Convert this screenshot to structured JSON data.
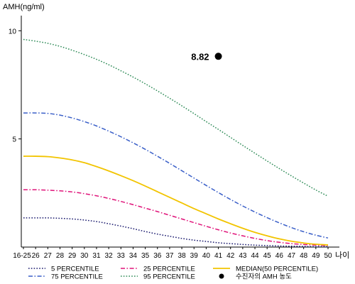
{
  "chart_data": {
    "type": "line",
    "ylabel": "AMH(ng/ml)",
    "xlabel": "나이",
    "y_ticks": [
      "5",
      "10"
    ],
    "ylim": [
      0,
      10.7
    ],
    "x_ticks": [
      "16-25",
      "26",
      "27",
      "28",
      "29",
      "30",
      "31",
      "32",
      "33",
      "34",
      "35",
      "36",
      "37",
      "38",
      "39",
      "40",
      "41",
      "42",
      "43",
      "44",
      "45",
      "46",
      "47",
      "48",
      "49",
      "50"
    ],
    "series": [
      {
        "name": "5 PERCENTILE",
        "color": "#1a1a6e",
        "dash": "dotted",
        "values": [
          1.35,
          1.35,
          1.35,
          1.33,
          1.3,
          1.25,
          1.18,
          1.08,
          0.97,
          0.85,
          0.72,
          0.6,
          0.5,
          0.4,
          0.32,
          0.26,
          0.2,
          0.16,
          0.12,
          0.09,
          0.07,
          0.05,
          0.04,
          0.03,
          0.02,
          0.02
        ]
      },
      {
        "name": "25 PERCENTILE",
        "color": "#e0147a",
        "dash": "dashdot",
        "values": [
          2.65,
          2.65,
          2.63,
          2.6,
          2.55,
          2.47,
          2.37,
          2.25,
          2.11,
          1.96,
          1.8,
          1.64,
          1.47,
          1.3,
          1.13,
          0.96,
          0.8,
          0.65,
          0.52,
          0.4,
          0.3,
          0.22,
          0.16,
          0.12,
          0.09,
          0.07
        ]
      },
      {
        "name": "MEDIAN(50 PERCENTILE)",
        "color": "#f2c400",
        "dash": "solid",
        "values": [
          4.2,
          4.2,
          4.18,
          4.12,
          4.03,
          3.9,
          3.72,
          3.52,
          3.3,
          3.07,
          2.82,
          2.56,
          2.3,
          2.04,
          1.78,
          1.54,
          1.3,
          1.08,
          0.87,
          0.68,
          0.52,
          0.38,
          0.27,
          0.19,
          0.13,
          0.1
        ]
      },
      {
        "name": "75 PERCENTILE",
        "color": "#3a5fc8",
        "dash": "dashdot",
        "values": [
          6.2,
          6.2,
          6.18,
          6.1,
          5.97,
          5.8,
          5.6,
          5.36,
          5.1,
          4.82,
          4.52,
          4.2,
          3.87,
          3.53,
          3.19,
          2.85,
          2.52,
          2.2,
          1.9,
          1.62,
          1.36,
          1.12,
          0.9,
          0.71,
          0.55,
          0.42
        ]
      },
      {
        "name": "95 PERCENTILE",
        "color": "#2e8b57",
        "dash": "dotted",
        "values": [
          9.6,
          9.52,
          9.42,
          9.28,
          9.1,
          8.9,
          8.68,
          8.43,
          8.15,
          7.86,
          7.55,
          7.22,
          6.88,
          6.53,
          6.17,
          5.8,
          5.44,
          5.07,
          4.7,
          4.34,
          3.98,
          3.63,
          3.29,
          2.96,
          2.64,
          2.35
        ]
      }
    ],
    "points": [
      {
        "name": "수진자의 AMH 농도",
        "x": "41",
        "y": 8.82,
        "label": "8.82",
        "color": "#000000"
      }
    ]
  }
}
